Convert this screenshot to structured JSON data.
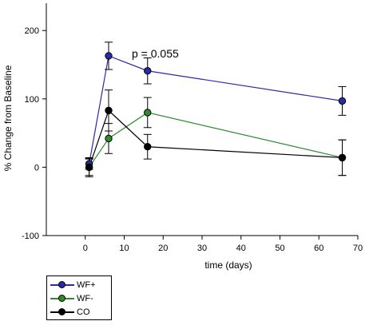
{
  "chart_data": {
    "type": "line",
    "xlabel": "time (days)",
    "ylabel": "% Change from Baseline",
    "xlim": [
      -10,
      70
    ],
    "ylim": [
      -100,
      240
    ],
    "xticks": [
      0,
      10,
      20,
      30,
      40,
      50,
      60,
      70
    ],
    "yticks": [
      -100,
      0,
      100,
      200
    ],
    "x": [
      1,
      6,
      16,
      66
    ],
    "series": [
      {
        "name": "WF+",
        "color": "#2a2aa8",
        "values": [
          5,
          163,
          141,
          97
        ],
        "errors": [
          8,
          20,
          19,
          21
        ]
      },
      {
        "name": "WF-",
        "color": "#2e8b2e",
        "values": [
          0,
          42,
          80,
          14
        ],
        "errors": [
          14,
          22,
          22,
          26
        ]
      },
      {
        "name": "CO",
        "color": "#000000",
        "values": [
          0,
          83,
          30,
          14
        ],
        "errors": [
          12,
          30,
          18,
          26
        ]
      }
    ],
    "annotation": {
      "text": "p = 0.055",
      "color": "#2a2aa8"
    },
    "grid": false,
    "legend_position": "bottom-left, outside plot"
  }
}
